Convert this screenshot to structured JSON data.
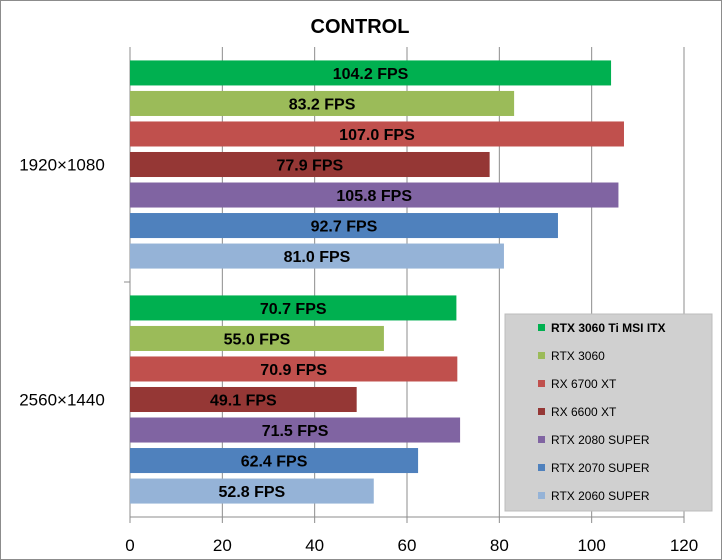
{
  "chart_data": {
    "type": "bar",
    "orientation": "horizontal",
    "title": "CONTROL",
    "xlabel": "",
    "ylabel": "",
    "xlim": [
      0,
      120
    ],
    "x_ticks": [
      "0",
      "20",
      "40",
      "60",
      "80",
      "100",
      "120"
    ],
    "grid": true,
    "legend_position": "right",
    "categories": [
      "1920×1080",
      "2560×1440"
    ],
    "series": [
      {
        "name": "RTX 3060 Ti MSI ITX",
        "color": "#00b050",
        "values": [
          104.2,
          70.7
        ],
        "labels": [
          "104.2 FPS",
          "70.7 FPS"
        ]
      },
      {
        "name": "RTX 3060",
        "color": "#9bbb59",
        "values": [
          83.2,
          55.0
        ],
        "labels": [
          "83.2 FPS",
          "55.0 FPS"
        ]
      },
      {
        "name": "RX 6700 XT",
        "color": "#c0504d",
        "values": [
          107.0,
          70.9
        ],
        "labels": [
          "107.0 FPS",
          "70.9 FPS"
        ]
      },
      {
        "name": "RX 6600 XT",
        "color": "#953735",
        "values": [
          77.9,
          49.1
        ],
        "labels": [
          "77.9 FPS",
          "49.1 FPS"
        ]
      },
      {
        "name": "RTX 2080 SUPER",
        "color": "#8064a2",
        "values": [
          105.8,
          71.5
        ],
        "labels": [
          "105.8 FPS",
          "71.5 FPS"
        ]
      },
      {
        "name": "RTX 2070 SUPER",
        "color": "#4f81bd",
        "values": [
          92.7,
          62.4
        ],
        "labels": [
          "92.7 FPS",
          "62.4 FPS"
        ]
      },
      {
        "name": "RTX 2060 SUPER",
        "color": "#95b3d7",
        "values": [
          81.0,
          52.8
        ],
        "labels": [
          "81.0 FPS",
          "52.8 FPS"
        ]
      }
    ]
  }
}
